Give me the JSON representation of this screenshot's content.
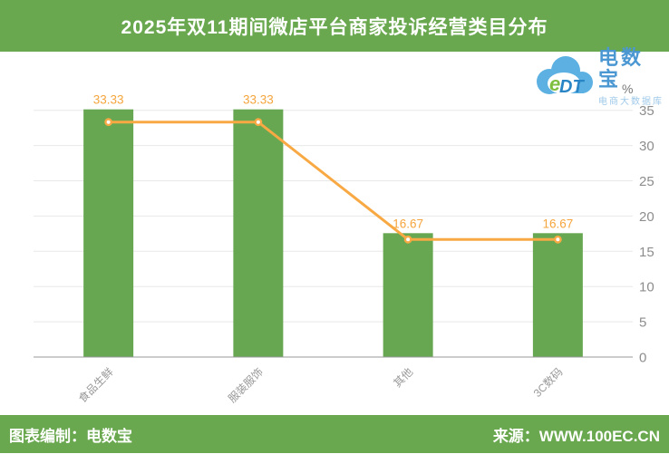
{
  "header": {
    "title": "2025年双11期间微店平台商家投诉经营类目分布"
  },
  "logo": {
    "cloud_text": "eDT",
    "brand": "电数宝",
    "subtitle": "电商大数据库"
  },
  "footer": {
    "left": "图表编制：电数宝",
    "right": "来源：WWW.100EC.CN"
  },
  "colors": {
    "header_green": "#6aa84f",
    "bar_green": "#68a751",
    "line_orange": "#f8a944",
    "data_label_orange": "#f5a53d",
    "axis_line_gray": "#999999",
    "grid_gray": "#e8e8e8",
    "tick_text_gray": "#8d8d8d",
    "category_text_gray": "#999999",
    "unit_text_gray": "#777777",
    "logo_brand_blue": "#4a97d2",
    "logo_subtitle_blue": "#9fc9e9",
    "cloud_blue": "#5cb1e2",
    "logo_e_green": "#7ebf3f",
    "logo_dt_blue": "#2a85c6"
  },
  "chart_data": {
    "type": "bar",
    "title": "2025年双11期间微店平台商家投诉经营类目分布",
    "categories": [
      "食品生鲜",
      "服装服饰",
      "其他",
      "3C数码"
    ],
    "series": [
      {
        "type": "bar",
        "values": [
          33.33,
          33.33,
          16.67,
          16.67
        ]
      },
      {
        "type": "line",
        "values": [
          33.33,
          33.33,
          16.67,
          16.67
        ]
      }
    ],
    "data_labels": [
      "33.33",
      "33.33",
      "16.67",
      "16.67"
    ],
    "xlabel": "",
    "ylabel": "%",
    "yticks": [
      0,
      5,
      10,
      15,
      20,
      25,
      30,
      35
    ],
    "ylim": [
      0,
      35
    ],
    "y_axis_position": "right",
    "grid": true,
    "legend_position": "none"
  }
}
